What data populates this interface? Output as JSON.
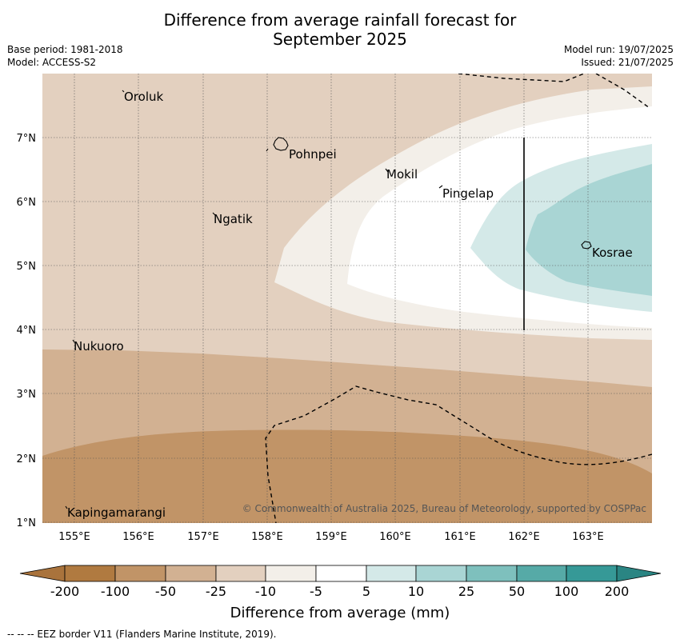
{
  "header": {
    "title_line1": "Difference from average rainfall forecast for",
    "title_line2": "September 2025",
    "base_period": "Base period: 1981-2018",
    "model": "Model: ACCESS-S2",
    "model_run": "Model run: 19/07/2025",
    "issued": "Issued: 21/07/2025"
  },
  "map": {
    "lon_ticks": [
      "155°E",
      "156°E",
      "157°E",
      "158°E",
      "159°E",
      "160°E",
      "161°E",
      "162°E",
      "163°E"
    ],
    "lat_ticks": [
      "7°N",
      "6°N",
      "5°N",
      "4°N",
      "3°N",
      "2°N",
      "1°N"
    ],
    "places": {
      "oroluk": "Oroluk",
      "pohnpei": "Pohnpei",
      "mokil": "Mokil",
      "pingelap": "Pingelap",
      "ngatik": "Ngatik",
      "kosrae": "Kosrae",
      "nukuoro": "Nukuoro",
      "kapingamarangi": "Kapingamarangi"
    },
    "credit": "© Commonwealth of Australia 2025, Bureau of Meteorology, supported by COSPPac",
    "fill_colors": {
      "minus_25": "#e3d0bf",
      "minus_50": "#d2b192",
      "minus_100": "#c19467",
      "minus_10": "#f3efe9",
      "minus_5_to_5": "#ffffff",
      "plus_10": "#d4e9e8",
      "plus_25": "#a9d5d4"
    }
  },
  "colorbar": {
    "ticks": [
      "-200",
      "-100",
      "-50",
      "-25",
      "-10",
      "-5",
      "5",
      "10",
      "25",
      "50",
      "100",
      "200"
    ],
    "colors": [
      "#a9733c",
      "#b07a40",
      "#c19467",
      "#d2b192",
      "#e3d0bf",
      "#f3efe9",
      "#ffffff",
      "#d4e9e8",
      "#a9d5d4",
      "#7ec0bd",
      "#56aaa7",
      "#369997",
      "#2a8583"
    ],
    "title": "Difference from average (mm)"
  },
  "footer": {
    "eez_note": "--  --  -- EEZ border V11 (Flanders Marine Institute, 2019)."
  }
}
